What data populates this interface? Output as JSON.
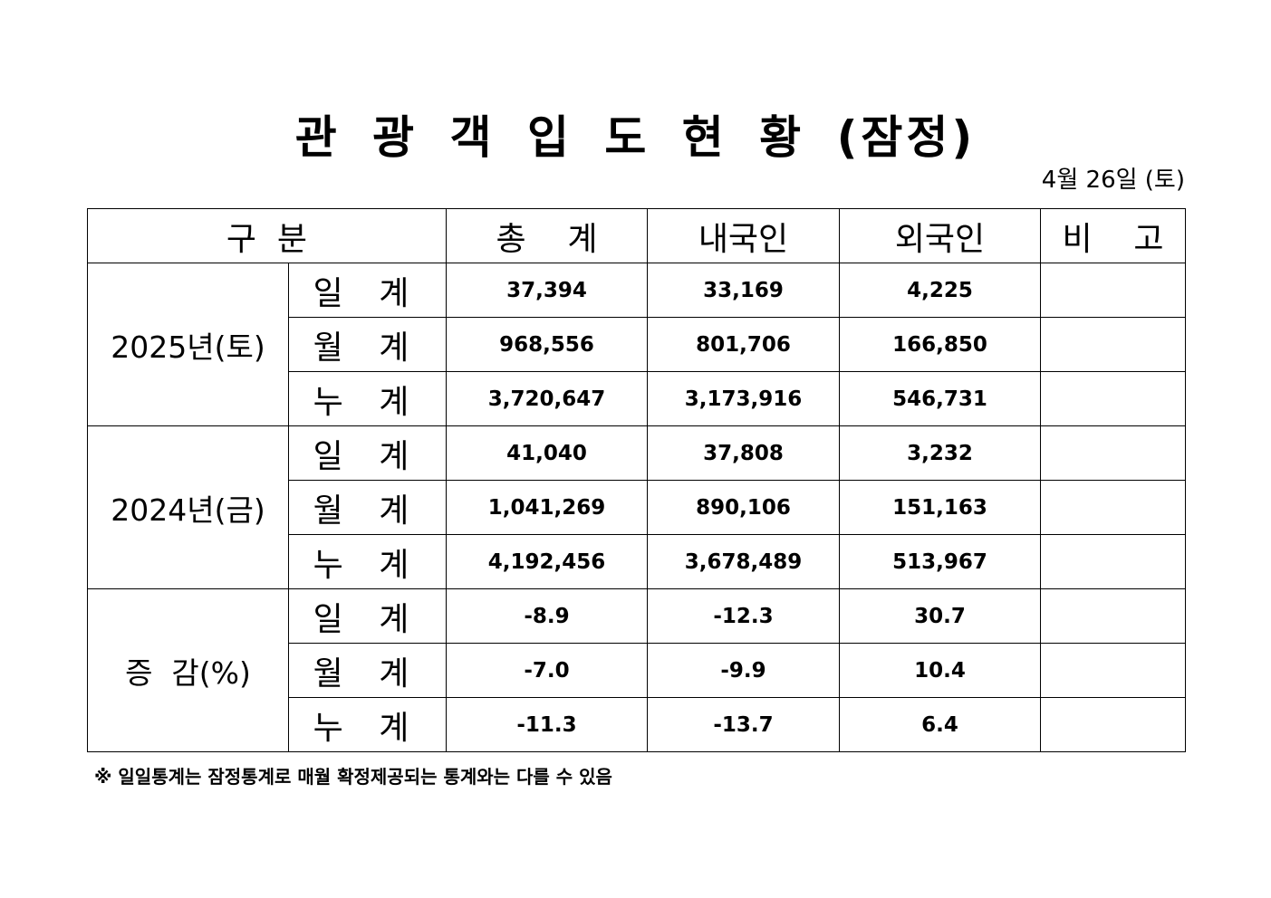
{
  "title": "관 광 객 입 도 현 황 (잠정)",
  "date": "4월  26일  (토)",
  "headers": [
    "구  분",
    "총    계",
    "내국인",
    "외국인",
    "비    고"
  ],
  "groups": [
    {
      "label": "2025년(토)",
      "rows": [
        {
          "sub": "일 계",
          "total": "37,394",
          "domestic": "33,169",
          "foreign": "4,225",
          "note": ""
        },
        {
          "sub": "월 계",
          "total": "968,556",
          "domestic": "801,706",
          "foreign": "166,850",
          "note": ""
        },
        {
          "sub": "누 계",
          "total": "3,720,647",
          "domestic": "3,173,916",
          "foreign": "546,731",
          "note": ""
        }
      ]
    },
    {
      "label": "2024년(금)",
      "rows": [
        {
          "sub": "일 계",
          "total": "41,040",
          "domestic": "37,808",
          "foreign": "3,232",
          "note": ""
        },
        {
          "sub": "월 계",
          "total": "1,041,269",
          "domestic": "890,106",
          "foreign": "151,163",
          "note": ""
        },
        {
          "sub": "누 계",
          "total": "4,192,456",
          "domestic": "3,678,489",
          "foreign": "513,967",
          "note": ""
        }
      ]
    },
    {
      "label": "증  감(%)",
      "rows": [
        {
          "sub": "일 계",
          "total": "-8.9",
          "domestic": "-12.3",
          "foreign": "30.7",
          "note": ""
        },
        {
          "sub": "월 계",
          "total": "-7.0",
          "domestic": "-9.9",
          "foreign": "10.4",
          "note": ""
        },
        {
          "sub": "누 계",
          "total": "-11.3",
          "domestic": "-13.7",
          "foreign": "6.4",
          "note": ""
        }
      ]
    }
  ],
  "footnote": "※ 일일통계는 잠정통계로 매월 확정제공되는 통계와는 다를 수 있음"
}
